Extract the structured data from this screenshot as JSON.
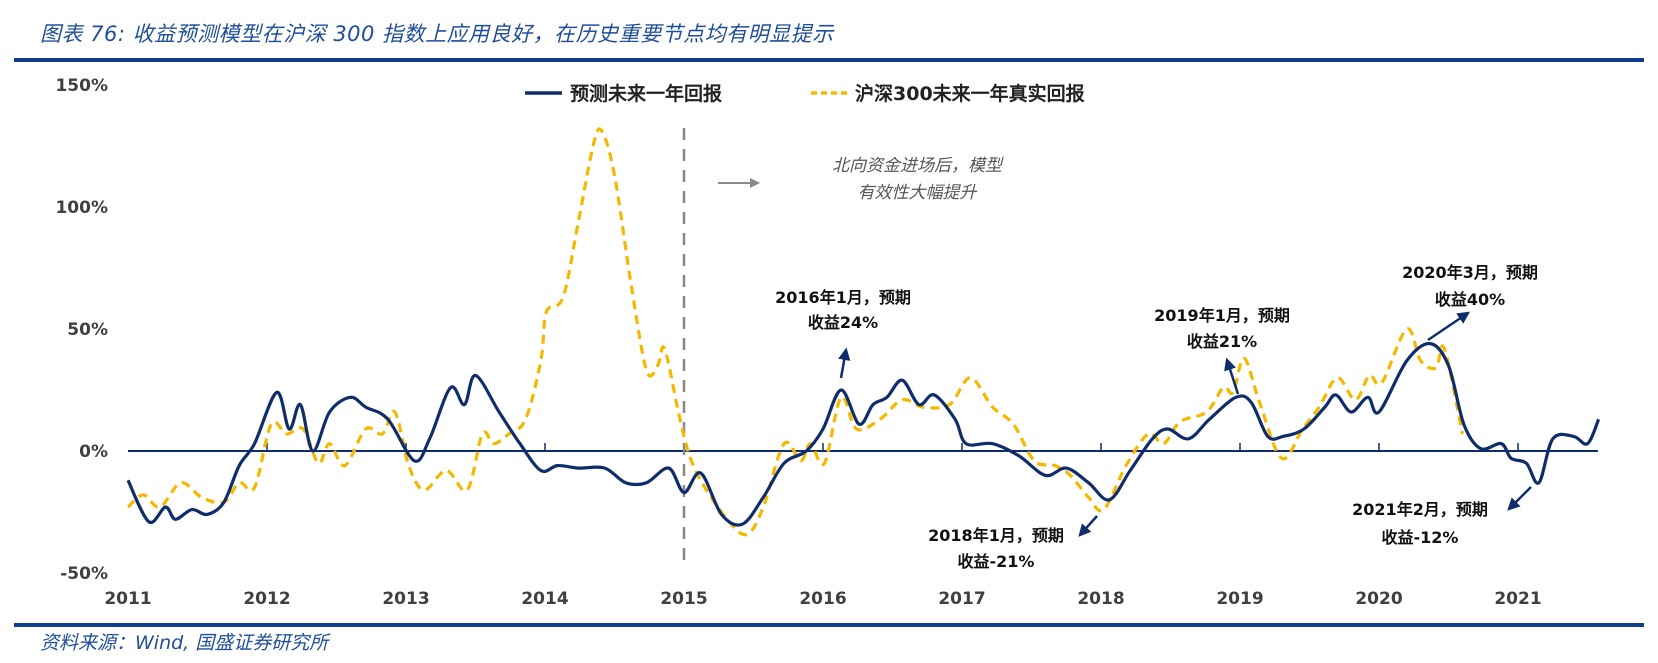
{
  "title": "图表 76: 收益预测模型在沪深 300 指数上应用良好，在历史重要节点均有明显提示",
  "source": "资料来源：Wind, 国盛证券研究所",
  "colors": {
    "forecast": "#0f2d6b",
    "actual": "#f5b800",
    "title": "#1f4e9a",
    "rule": "#0d3d8c",
    "divider": "#888888"
  },
  "chart_data": {
    "type": "line",
    "title": "",
    "xlabel": "",
    "ylabel": "",
    "xlim": [
      2011,
      2021.6
    ],
    "ylim": [
      -50,
      150
    ],
    "x_ticks": [
      "2011",
      "2012",
      "2013",
      "2014",
      "2015",
      "2016",
      "2017",
      "2018",
      "2019",
      "2020",
      "2021"
    ],
    "y_ticks": [
      "150%",
      "100%",
      "50%",
      "0%",
      "-50%"
    ],
    "y_tick_values": [
      150,
      100,
      50,
      0,
      -50
    ],
    "legend_position": "top-center",
    "series": [
      {
        "name": "预测未来一年回报",
        "style": "solid",
        "x": [
          2011.0,
          2011.15,
          2011.27,
          2011.34,
          2011.46,
          2011.57,
          2011.69,
          2011.8,
          2011.91,
          2012.07,
          2012.16,
          2012.24,
          2012.33,
          2012.45,
          2012.6,
          2012.71,
          2012.87,
          2013.06,
          2013.17,
          2013.32,
          2013.42,
          2013.5,
          2013.67,
          2013.82,
          2013.97,
          2014.09,
          2014.24,
          2014.43,
          2014.58,
          2014.73,
          2014.89,
          2015.0,
          2015.12,
          2015.27,
          2015.42,
          2015.57,
          2015.72,
          2015.88,
          2016.0,
          2016.13,
          2016.26,
          2016.36,
          2016.46,
          2016.57,
          2016.69,
          2016.8,
          2016.95,
          2017.03,
          2017.22,
          2017.41,
          2017.6,
          2017.75,
          2017.91,
          2018.06,
          2018.21,
          2018.37,
          2018.48,
          2018.63,
          2018.78,
          2018.97,
          2019.08,
          2019.2,
          2019.31,
          2019.46,
          2019.61,
          2019.69,
          2019.8,
          2019.92,
          2020.0,
          2020.2,
          2020.37,
          2020.5,
          2020.61,
          2020.73,
          2020.88,
          2020.95,
          2021.06,
          2021.15,
          2021.25,
          2021.4,
          2021.5,
          2021.58
        ],
        "y": [
          -12,
          -29,
          -23,
          -28,
          -24,
          -26,
          -21,
          -6,
          3,
          24,
          9,
          19,
          0,
          16,
          22,
          18,
          13,
          -4,
          5,
          26,
          19,
          31,
          16,
          3,
          -8,
          -6,
          -7,
          -7,
          -13,
          -13,
          -7,
          -17,
          -9,
          -26,
          -30,
          -19,
          -5,
          0,
          9,
          25,
          11,
          19,
          22,
          29,
          19,
          23,
          13,
          3,
          3,
          -2,
          -10,
          -7,
          -13,
          -20,
          -8,
          5,
          9,
          5,
          13,
          22,
          20,
          6,
          6,
          9,
          18,
          23,
          16,
          22,
          16,
          37,
          44,
          35,
          11,
          1,
          3,
          -3,
          -5,
          -13,
          5,
          6,
          3,
          13
        ]
      },
      {
        "name": "沪深300未来一年真实回报",
        "style": "dashed",
        "x": [
          2011.0,
          2011.11,
          2011.23,
          2011.38,
          2011.53,
          2011.69,
          2011.8,
          2011.91,
          2012.03,
          2012.14,
          2012.26,
          2012.37,
          2012.45,
          2012.56,
          2012.71,
          2012.83,
          2012.92,
          2013.02,
          2013.13,
          2013.29,
          2013.44,
          2013.55,
          2013.63,
          2013.74,
          2013.86,
          2013.97,
          2014.01,
          2014.13,
          2014.24,
          2014.35,
          2014.41,
          2014.5,
          2014.62,
          2014.73,
          2014.81,
          2014.86,
          2014.96,
          2015.04,
          2015.15,
          2015.34,
          2015.46,
          2015.57,
          2015.72,
          2015.84,
          2015.91,
          2016.01,
          2016.13,
          2016.24,
          2016.41,
          2016.57,
          2016.72,
          2016.91,
          2017.06,
          2017.22,
          2017.37,
          2017.52,
          2017.67,
          2017.78,
          2017.91,
          2018.02,
          2018.18,
          2018.34,
          2018.45,
          2018.57,
          2018.76,
          2018.88,
          2018.95,
          2019.03,
          2019.14,
          2019.3,
          2019.45,
          2019.57,
          2019.7,
          2019.83,
          2019.93,
          2020.02,
          2020.2,
          2020.3,
          2020.41,
          2020.47,
          2020.6
        ],
        "y": [
          -23,
          -18,
          -23,
          -13,
          -19,
          -21,
          -13,
          -15,
          11,
          7,
          9,
          -5,
          3,
          -6,
          9,
          7,
          16,
          -6,
          -16,
          -8,
          -16,
          7,
          3,
          7,
          13,
          37,
          57,
          63,
          94,
          126,
          131,
          113,
          68,
          33,
          35,
          42,
          16,
          -2,
          -15,
          -30,
          -34,
          -23,
          3,
          -4,
          3,
          -5,
          22,
          9,
          13,
          21,
          18,
          19,
          30,
          18,
          11,
          -4,
          -6,
          -10,
          -19,
          -24,
          -6,
          7,
          3,
          12,
          16,
          26,
          24,
          38,
          20,
          -3,
          9,
          18,
          30,
          21,
          31,
          28,
          50,
          37,
          34,
          42,
          7
        ]
      }
    ],
    "annotations": [
      {
        "text": [
          "北向资金进场后，模型",
          "有效性大幅提升"
        ],
        "at_x": 2015
      },
      {
        "text": [
          "2016年1月，预期",
          "收益24%"
        ],
        "x": 2016.0,
        "y": 24
      },
      {
        "text": [
          "2018年1月，预期",
          "收益-21%"
        ],
        "x": 2018.0,
        "y": -21
      },
      {
        "text": [
          "2019年1月，预期",
          "收益21%"
        ],
        "x": 2019.0,
        "y": 21
      },
      {
        "text": [
          "2020年3月，预期",
          "收益40%"
        ],
        "x": 2020.2,
        "y": 40
      },
      {
        "text": [
          "2021年2月，预期",
          "收益-12%"
        ],
        "x": 2021.1,
        "y": -12
      }
    ]
  }
}
